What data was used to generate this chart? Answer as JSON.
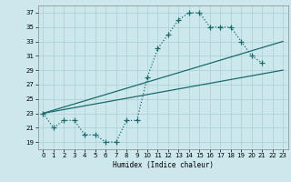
{
  "xlabel": "Humidex (Indice chaleur)",
  "background_color": "#cce8ec",
  "grid_color": "#aacdd4",
  "line_color": "#1a6b6b",
  "xlim": [
    -0.5,
    23.5
  ],
  "ylim": [
    18,
    38
  ],
  "yticks": [
    19,
    21,
    23,
    25,
    27,
    29,
    31,
    33,
    35,
    37
  ],
  "xticks": [
    0,
    1,
    2,
    3,
    4,
    5,
    6,
    7,
    8,
    9,
    10,
    11,
    12,
    13,
    14,
    15,
    16,
    17,
    18,
    19,
    20,
    21,
    22,
    23
  ],
  "curve": {
    "x": [
      0,
      1,
      2,
      3,
      4,
      5,
      6,
      7,
      8,
      9,
      10,
      11,
      12,
      13,
      14,
      15,
      16,
      17,
      18,
      19,
      20,
      21
    ],
    "y": [
      23,
      21,
      22,
      22,
      20,
      20,
      19,
      19,
      22,
      22,
      28,
      32,
      34,
      36,
      37,
      37,
      35,
      35,
      35,
      33,
      31,
      30
    ]
  },
  "line1": {
    "x": [
      0,
      23
    ],
    "y": [
      23,
      29
    ]
  },
  "line2": {
    "x": [
      0,
      23
    ],
    "y": [
      23,
      33
    ]
  }
}
